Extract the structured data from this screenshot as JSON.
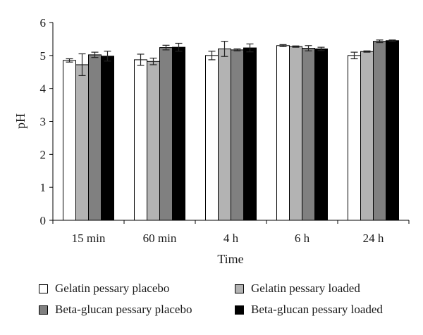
{
  "chart_data": {
    "type": "bar",
    "xlabel": "Time",
    "ylabel": "pH",
    "ylim": [
      0,
      6
    ],
    "yticks": [
      "0",
      "1",
      "2",
      "3",
      "4",
      "5",
      "6"
    ],
    "grid": false,
    "legend_position": "bottom",
    "categories": [
      "15 min",
      "60 min",
      "4 h",
      "6 h",
      "24 h"
    ],
    "series": [
      {
        "name": "Gelatin pessary placebo",
        "color": "#ffffff",
        "values": [
          4.85,
          4.87,
          5.0,
          5.3,
          5.0
        ],
        "errors": [
          0.05,
          0.17,
          0.13,
          0.03,
          0.1
        ]
      },
      {
        "name": "Gelatin pessary loaded",
        "color": "#b3b3b3",
        "values": [
          4.72,
          4.82,
          5.2,
          5.27,
          5.12
        ],
        "errors": [
          0.33,
          0.1,
          0.23,
          0.02,
          0.02
        ]
      },
      {
        "name": "Beta-glucan pessary placebo",
        "color": "#808080",
        "values": [
          5.02,
          5.24,
          5.17,
          5.22,
          5.43
        ],
        "errors": [
          0.08,
          0.07,
          0.03,
          0.08,
          0.04
        ]
      },
      {
        "name": "Beta-glucan pessary loaded",
        "color": "#000000",
        "values": [
          4.98,
          5.25,
          5.23,
          5.2,
          5.45
        ],
        "errors": [
          0.15,
          0.12,
          0.12,
          0.05,
          0.02
        ]
      }
    ]
  },
  "legend": {
    "items": [
      {
        "label": "Gelatin pessary placebo",
        "color": "#ffffff"
      },
      {
        "label": "Gelatin pessary loaded",
        "color": "#b3b3b3"
      },
      {
        "label": "Beta-glucan pessary placebo",
        "color": "#808080"
      },
      {
        "label": "Beta-glucan pessary loaded",
        "color": "#000000"
      }
    ]
  }
}
